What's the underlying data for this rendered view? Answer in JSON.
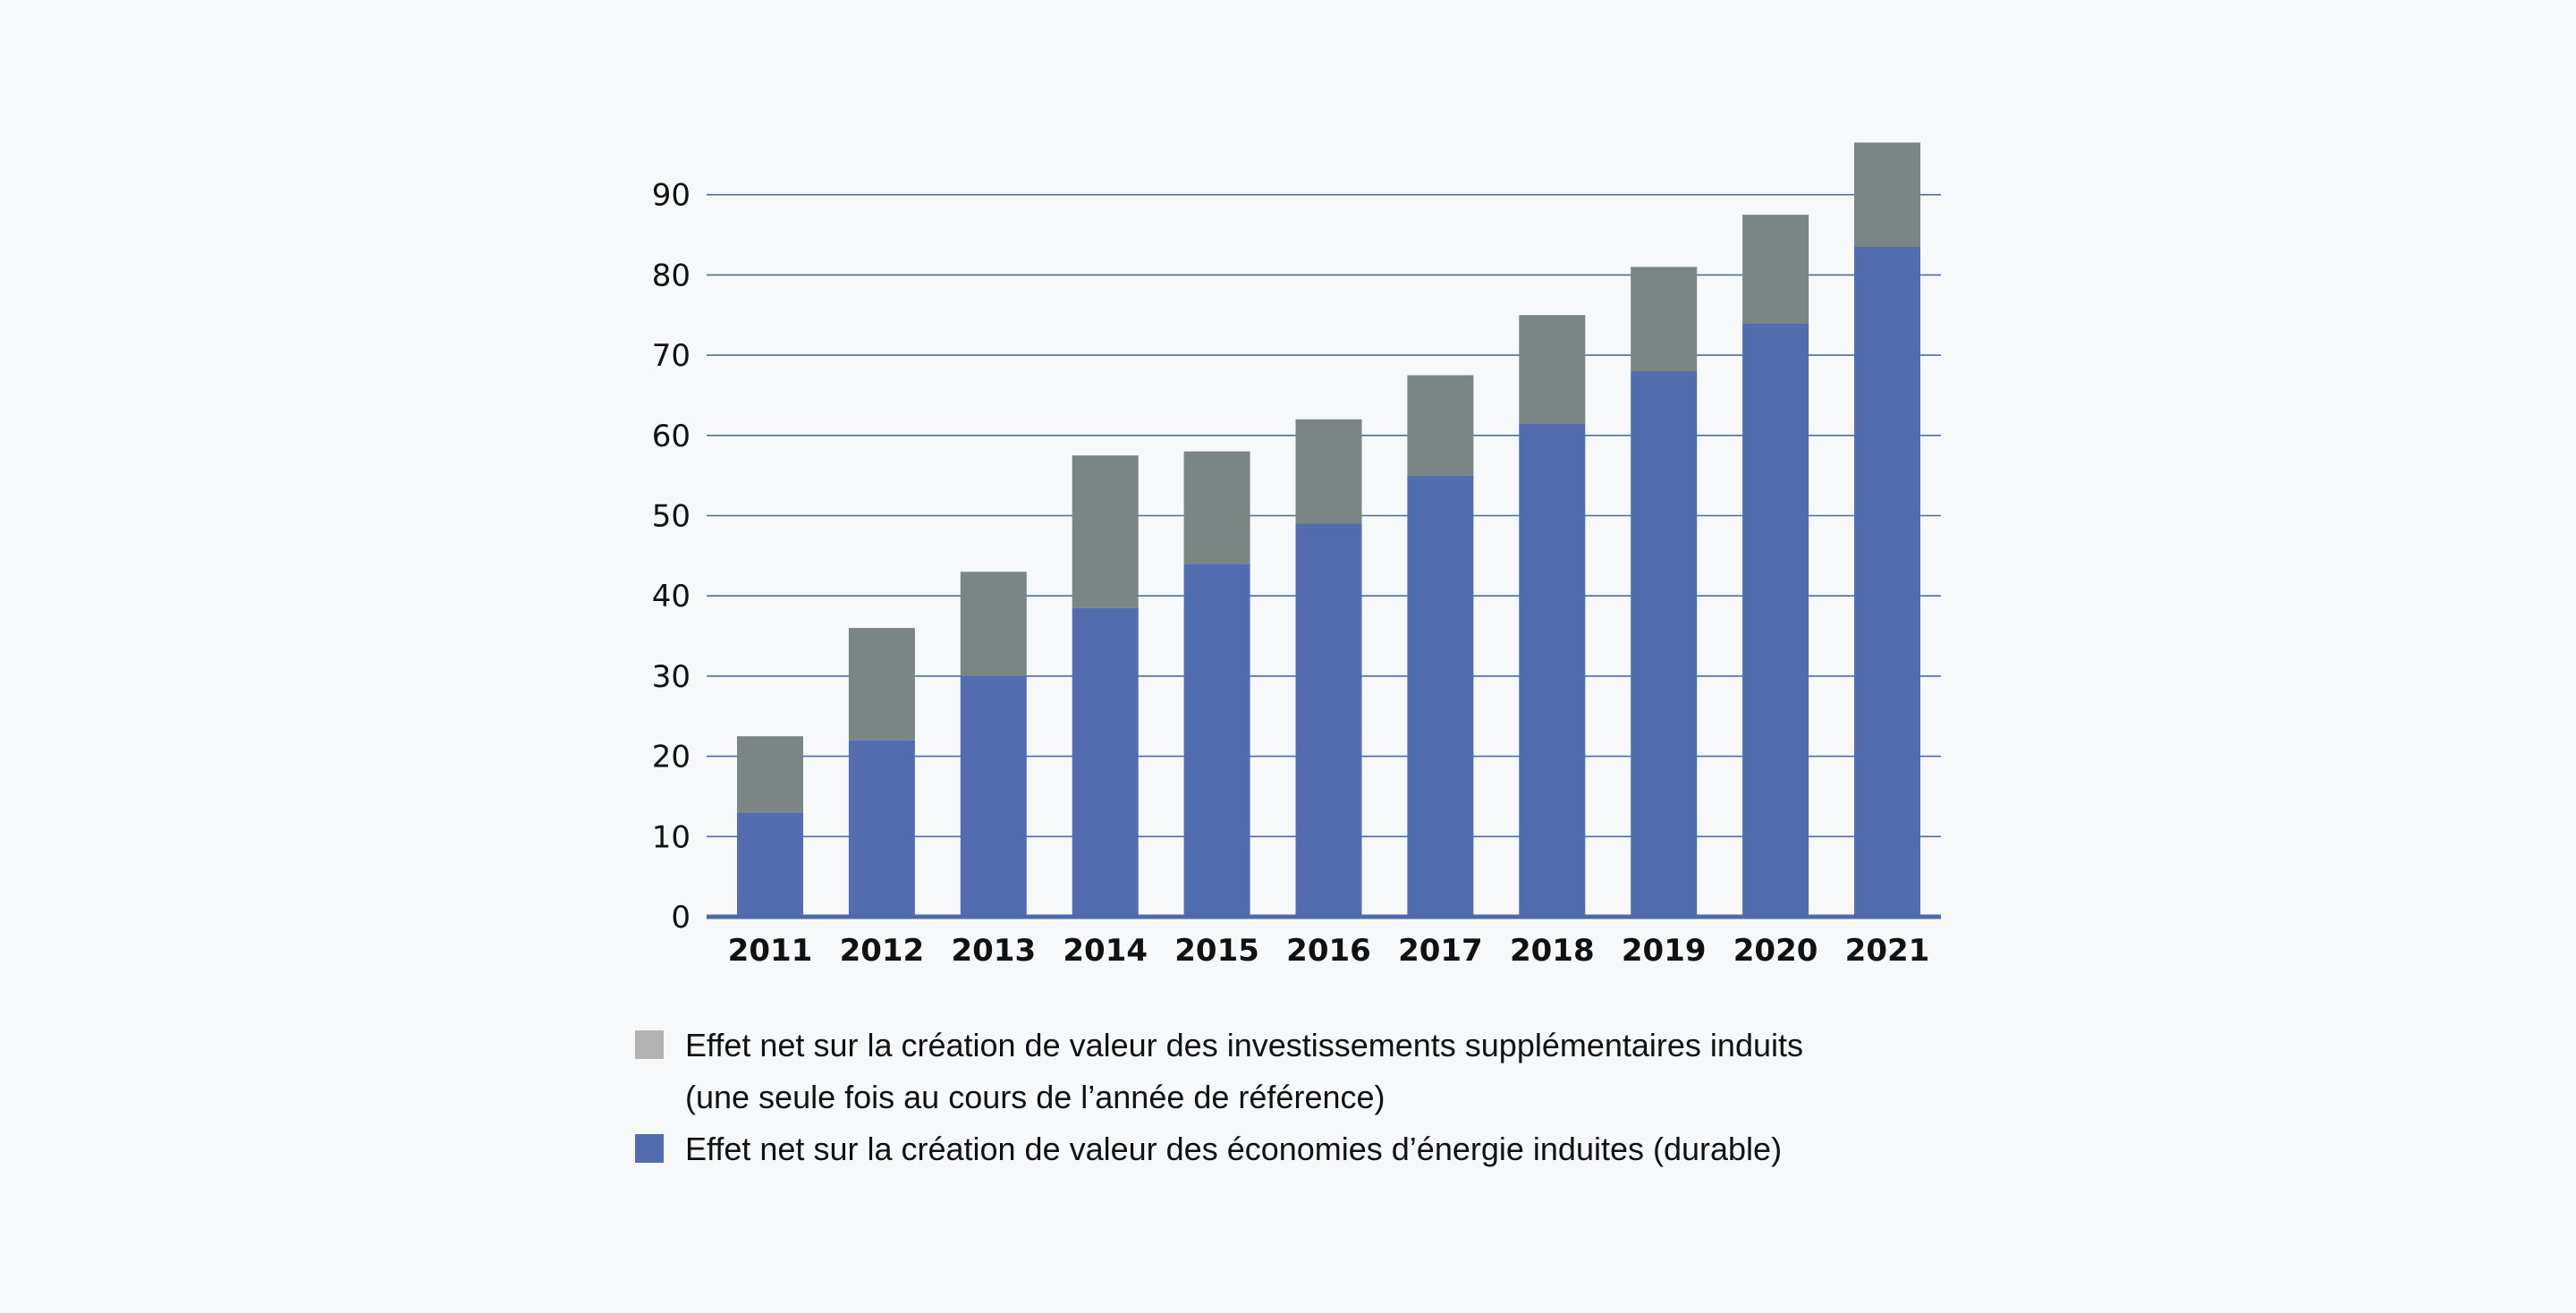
{
  "chart_data": {
    "type": "bar",
    "stacked": true,
    "categories": [
      "2011",
      "2012",
      "2013",
      "2014",
      "2015",
      "2016",
      "2017",
      "2018",
      "2019",
      "2020",
      "2021"
    ],
    "series": [
      {
        "name": "Effet net sur la création de valeur des économies d’énergie induites (durable)",
        "color": "#536cb0",
        "values": [
          13,
          22,
          30,
          38.5,
          44,
          49,
          55,
          61.5,
          68,
          74,
          83.5
        ]
      },
      {
        "name": "Effet net sur la création de valeur des investissements supplémentaires induits (une seule fois au cours de l’année de référence)",
        "color": "#7b8584",
        "values": [
          9.5,
          14,
          13,
          19,
          14,
          13,
          12.5,
          13.5,
          13,
          13.5,
          13
        ]
      }
    ],
    "yticks": [
      0,
      10,
      20,
      30,
      40,
      50,
      60,
      70,
      80,
      90
    ],
    "ylim": [
      0,
      100
    ],
    "grid": true,
    "legend_position": "bottom-left"
  },
  "legend": {
    "items": [
      {
        "lines": [
          "Effet net sur la création de valeur des investissements supplémentaires induits",
          "(une seule fois au cours de l’année de référence)"
        ],
        "swatch_color": "#b3b3b3"
      },
      {
        "lines": [
          "Effet net sur la création de valeur des économies d’énergie induites (durable)"
        ],
        "swatch_color": "#536cb0"
      }
    ]
  },
  "colors": {
    "grid": "#4f6aa8",
    "axis": "#4f6aa8",
    "background": "#f6f8fa"
  }
}
